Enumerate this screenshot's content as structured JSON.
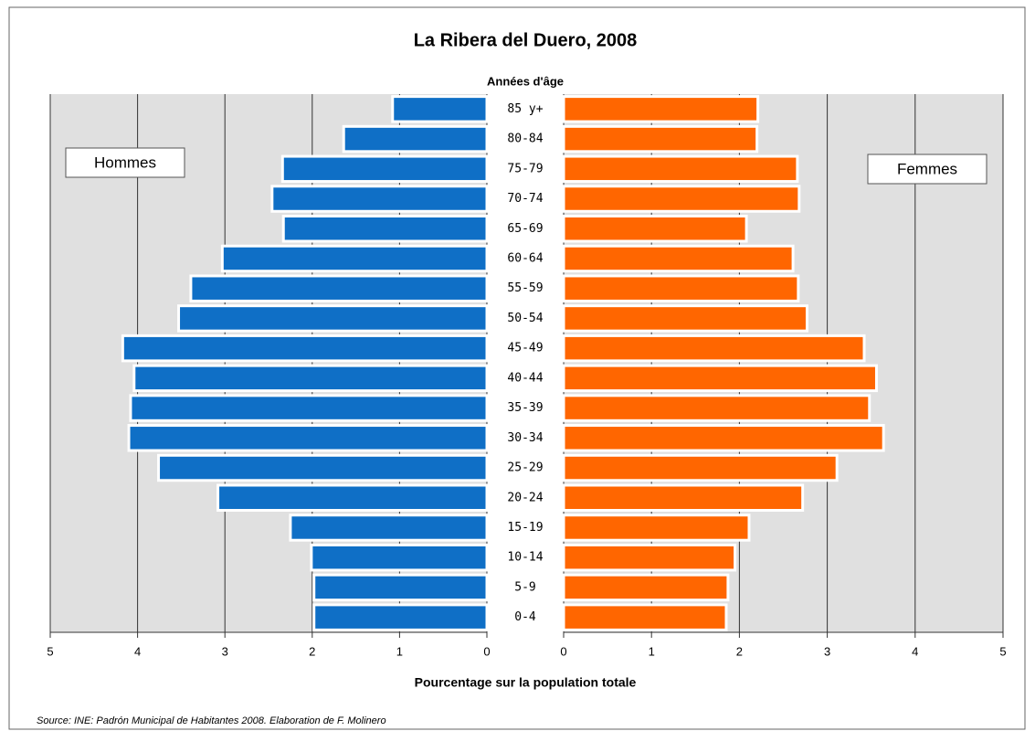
{
  "chart_data": {
    "type": "pyramid",
    "title": "La Ribera del Duero, 2008",
    "y_label": "Années d'âge",
    "x_label": "Pourcentage sur la population totale",
    "source": "Source: INE: Padrón Municipal de Habitantes 2008. Elaboration de F. Molinero",
    "categories": [
      "85 y+",
      "80-84",
      "75-79",
      "70-74",
      "65-69",
      "60-64",
      "55-59",
      "50-54",
      "45-49",
      "40-44",
      "35-39",
      "30-34",
      "25-29",
      "20-24",
      "15-19",
      "10-14",
      "5-9",
      "0-4"
    ],
    "series": [
      {
        "name": "Hommes",
        "color": "#0f6fc6",
        "values": [
          1.08,
          1.64,
          2.34,
          2.46,
          2.33,
          3.03,
          3.39,
          3.53,
          4.17,
          4.04,
          4.08,
          4.1,
          3.76,
          3.08,
          2.25,
          2.01,
          1.98,
          1.98
        ]
      },
      {
        "name": "Femmes",
        "color": "#ff6600",
        "values": [
          2.21,
          2.2,
          2.66,
          2.68,
          2.08,
          2.61,
          2.67,
          2.77,
          3.42,
          3.56,
          3.48,
          3.64,
          3.11,
          2.72,
          2.11,
          1.95,
          1.87,
          1.85
        ]
      }
    ],
    "xlim": [
      0,
      5
    ],
    "xticks": [
      0,
      1,
      2,
      3,
      4,
      5
    ],
    "grid": true
  }
}
